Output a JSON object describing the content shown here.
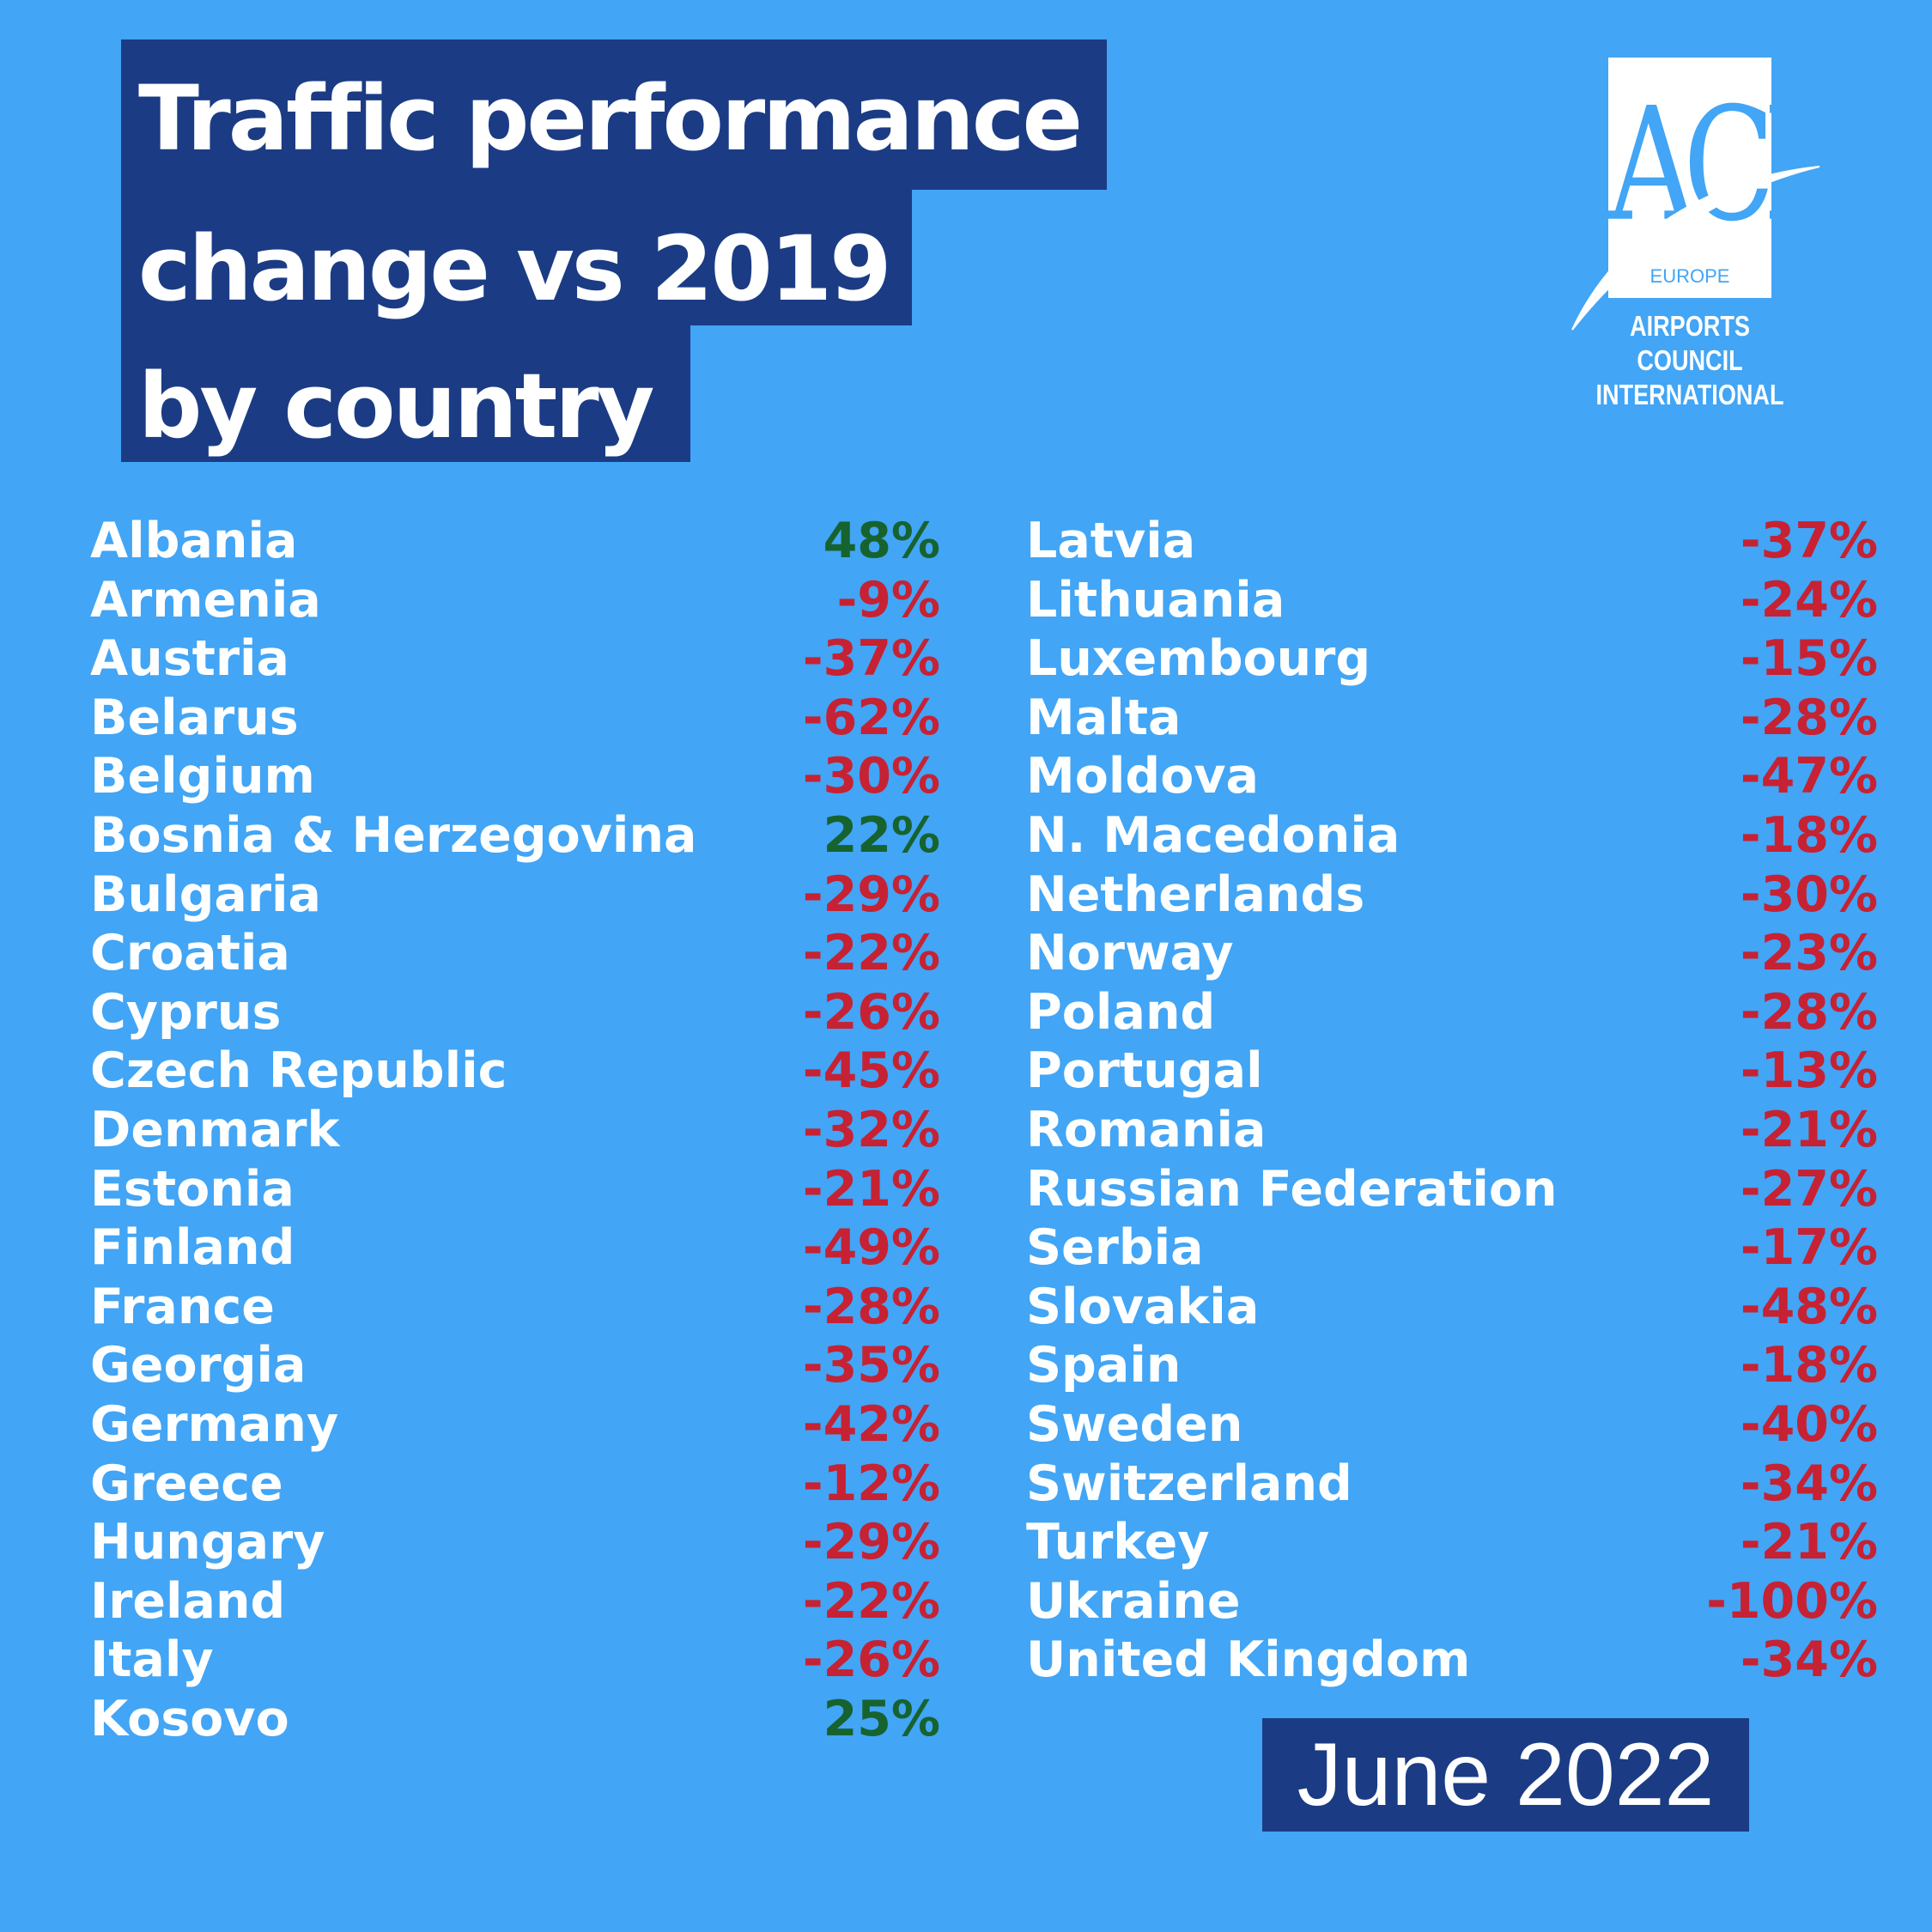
{
  "title": {
    "line1": "Traffic performance",
    "line2": "change vs 2019",
    "line3": "by country"
  },
  "logo": {
    "letters": "ACI",
    "region": "EUROPE",
    "org_line1": "AIRPORTS COUNCIL",
    "org_line2": "INTERNATIONAL"
  },
  "date_label": "June 2022",
  "colors": {
    "background": "#42a5f5",
    "title_box": "#1b3c84",
    "negative": "#c62233",
    "positive": "#17632f"
  },
  "left_column": [
    {
      "country": "Albania",
      "value": "48%"
    },
    {
      "country": "Armenia",
      "value": "-9%"
    },
    {
      "country": "Austria",
      "value": "-37%"
    },
    {
      "country": "Belarus",
      "value": "-62%"
    },
    {
      "country": "Belgium",
      "value": "-30%"
    },
    {
      "country": "Bosnia & Herzegovina",
      "value": "22%"
    },
    {
      "country": "Bulgaria",
      "value": "-29%"
    },
    {
      "country": "Croatia",
      "value": "-22%"
    },
    {
      "country": "Cyprus",
      "value": "-26%"
    },
    {
      "country": "Czech Republic",
      "value": "-45%"
    },
    {
      "country": "Denmark",
      "value": "-32%"
    },
    {
      "country": "Estonia",
      "value": "-21%"
    },
    {
      "country": "Finland",
      "value": "-49%"
    },
    {
      "country": "France",
      "value": "-28%"
    },
    {
      "country": "Georgia",
      "value": "-35%"
    },
    {
      "country": "Germany",
      "value": "-42%"
    },
    {
      "country": "Greece",
      "value": "-12%"
    },
    {
      "country": "Hungary",
      "value": "-29%"
    },
    {
      "country": "Ireland",
      "value": "-22%"
    },
    {
      "country": "Italy",
      "value": "-26%"
    },
    {
      "country": "Kosovo",
      "value": "25%"
    }
  ],
  "right_column": [
    {
      "country": "Latvia",
      "value": "-37%"
    },
    {
      "country": "Lithuania",
      "value": "-24%"
    },
    {
      "country": "Luxembourg",
      "value": "-15%"
    },
    {
      "country": "Malta",
      "value": "-28%"
    },
    {
      "country": "Moldova",
      "value": "-47%"
    },
    {
      "country": "N. Macedonia",
      "value": "-18%"
    },
    {
      "country": "Netherlands",
      "value": "-30%"
    },
    {
      "country": "Norway",
      "value": "-23%"
    },
    {
      "country": "Poland",
      "value": "-28%"
    },
    {
      "country": "Portugal",
      "value": "-13%"
    },
    {
      "country": "Romania",
      "value": "-21%"
    },
    {
      "country": "Russian Federation",
      "value": "-27%"
    },
    {
      "country": "Serbia",
      "value": "-17%"
    },
    {
      "country": "Slovakia",
      "value": "-48%"
    },
    {
      "country": "Spain",
      "value": "-18%"
    },
    {
      "country": "Sweden",
      "value": "-40%"
    },
    {
      "country": "Switzerland",
      "value": "-34%"
    },
    {
      "country": "Turkey",
      "value": "-21%"
    },
    {
      "country": "Ukraine",
      "value": "-100%"
    },
    {
      "country": "United Kingdom",
      "value": "-34%"
    }
  ]
}
